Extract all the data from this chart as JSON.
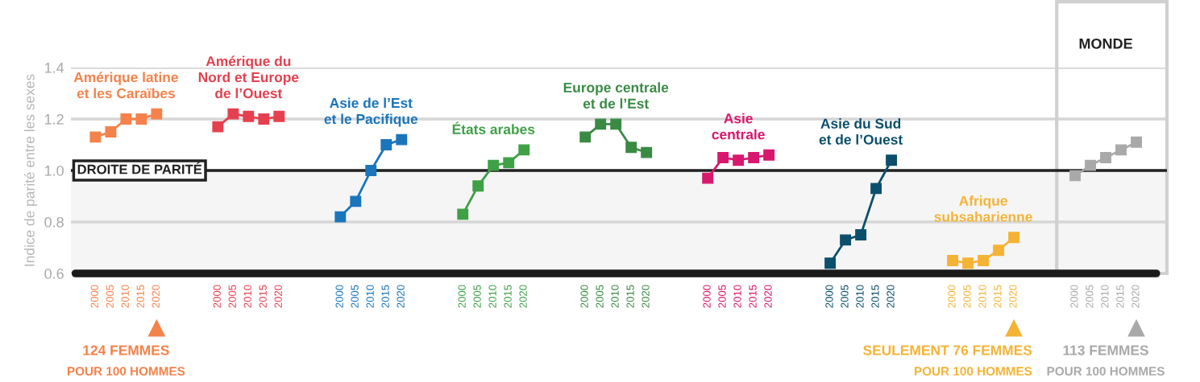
{
  "chart_data": {
    "type": "line",
    "title": "MONDE",
    "ylabel": "Indice de parité entre les sexes",
    "categories": [
      "2000",
      "2005",
      "2010",
      "2015",
      "2020",
      null,
      null,
      null,
      "2000",
      "2005",
      "2010",
      "2015",
      "2020",
      null,
      null,
      null,
      "2000",
      "2005",
      "2010",
      "2015",
      "2020",
      null,
      null,
      null,
      "2000",
      "2005",
      "2010",
      "2015",
      "2020",
      null,
      null,
      null,
      "2000",
      "2005",
      "2010",
      "2015",
      "2020",
      null,
      null,
      null,
      "2000",
      "2005",
      "2010",
      "2015",
      "2020",
      null,
      null,
      null,
      "2000",
      "2005",
      "2010",
      "2015",
      "2020",
      null,
      null,
      null,
      "2000",
      "2005",
      "2010",
      "2015",
      "2020",
      null,
      null,
      null,
      "2000",
      "2005",
      "2010",
      "2015",
      "2020"
    ],
    "series": [
      {
        "name": "Amérique latine\net les Caraïbes",
        "color": "#f4824a",
        "values": [
          1.13,
          1.15,
          1.2,
          1.2,
          1.22,
          null,
          null,
          null,
          null,
          null,
          null,
          null,
          null,
          null,
          null,
          null,
          null,
          null,
          null,
          null,
          null,
          null,
          null,
          null,
          null,
          null,
          null,
          null,
          null,
          null,
          null,
          null,
          null,
          null,
          null,
          null,
          null,
          null,
          null,
          null,
          null,
          null,
          null,
          null,
          null,
          null,
          null,
          null,
          null,
          null,
          null,
          null,
          null,
          null,
          null,
          null,
          null,
          null,
          null,
          null,
          null,
          null,
          null,
          null,
          null,
          null,
          null,
          null,
          null
        ]
      },
      {
        "name": "Amérique du\nNord et Europe\nde l’Ouest",
        "color": "#e5404f",
        "values": [
          null,
          null,
          null,
          null,
          null,
          null,
          null,
          null,
          1.17,
          1.22,
          1.21,
          1.2,
          1.21,
          null,
          null,
          null,
          null,
          null,
          null,
          null,
          null,
          null,
          null,
          null,
          null,
          null,
          null,
          null,
          null,
          null,
          null,
          null,
          null,
          null,
          null,
          null,
          null,
          null,
          null,
          null,
          null,
          null,
          null,
          null,
          null,
          null,
          null,
          null,
          null,
          null,
          null,
          null,
          null,
          null,
          null,
          null,
          null,
          null,
          null,
          null,
          null,
          null,
          null,
          null,
          null,
          null,
          null,
          null,
          null
        ]
      },
      {
        "name": "Asie de l’Est\net le Pacifique",
        "color": "#1a75bb",
        "values": [
          null,
          null,
          null,
          null,
          null,
          null,
          null,
          null,
          null,
          null,
          null,
          null,
          null,
          null,
          null,
          null,
          0.82,
          0.88,
          1.0,
          1.1,
          1.12,
          null,
          null,
          null,
          null,
          null,
          null,
          null,
          null,
          null,
          null,
          null,
          null,
          null,
          null,
          null,
          null,
          null,
          null,
          null,
          null,
          null,
          null,
          null,
          null,
          null,
          null,
          null,
          null,
          null,
          null,
          null,
          null,
          null,
          null,
          null,
          null,
          null,
          null,
          null,
          null,
          null,
          null,
          null,
          null,
          null,
          null,
          null,
          null
        ]
      },
      {
        "name": "États arabes",
        "color": "#3fa046",
        "values": [
          null,
          null,
          null,
          null,
          null,
          null,
          null,
          null,
          null,
          null,
          null,
          null,
          null,
          null,
          null,
          null,
          null,
          null,
          null,
          null,
          null,
          null,
          null,
          null,
          0.83,
          0.94,
          1.02,
          1.03,
          1.08,
          null,
          null,
          null,
          null,
          null,
          null,
          null,
          null,
          null,
          null,
          null,
          null,
          null,
          null,
          null,
          null,
          null,
          null,
          null,
          null,
          null,
          null,
          null,
          null,
          null,
          null,
          null,
          null,
          null,
          null,
          null,
          null,
          null,
          null,
          null,
          null,
          null,
          null,
          null,
          null
        ]
      },
      {
        "name": "Europe centrale\net de l’Est",
        "color": "#3a8a44",
        "values": [
          null,
          null,
          null,
          null,
          null,
          null,
          null,
          null,
          null,
          null,
          null,
          null,
          null,
          null,
          null,
          null,
          null,
          null,
          null,
          null,
          null,
          null,
          null,
          null,
          null,
          null,
          null,
          null,
          null,
          null,
          null,
          null,
          1.13,
          1.18,
          1.18,
          1.09,
          1.07,
          null,
          null,
          null,
          null,
          null,
          null,
          null,
          null,
          null,
          null,
          null,
          null,
          null,
          null,
          null,
          null,
          null,
          null,
          null,
          null,
          null,
          null,
          null,
          null,
          null,
          null,
          null,
          null,
          null,
          null,
          null,
          null
        ]
      },
      {
        "name": "Asie\ncentrale",
        "color": "#d8186e",
        "values": [
          null,
          null,
          null,
          null,
          null,
          null,
          null,
          null,
          null,
          null,
          null,
          null,
          null,
          null,
          null,
          null,
          null,
          null,
          null,
          null,
          null,
          null,
          null,
          null,
          null,
          null,
          null,
          null,
          null,
          null,
          null,
          null,
          null,
          null,
          null,
          null,
          null,
          null,
          null,
          null,
          0.97,
          1.05,
          1.04,
          1.05,
          1.06,
          null,
          null,
          null,
          null,
          null,
          null,
          null,
          null,
          null,
          null,
          null,
          null,
          null,
          null,
          null,
          null,
          null,
          null,
          null,
          null,
          null,
          null,
          null,
          null
        ]
      },
      {
        "name": "Asie du Sud\net de l’Ouest",
        "color": "#0b4f6c",
        "values": [
          null,
          null,
          null,
          null,
          null,
          null,
          null,
          null,
          null,
          null,
          null,
          null,
          null,
          null,
          null,
          null,
          null,
          null,
          null,
          null,
          null,
          null,
          null,
          null,
          null,
          null,
          null,
          null,
          null,
          null,
          null,
          null,
          null,
          null,
          null,
          null,
          null,
          null,
          null,
          null,
          null,
          null,
          null,
          null,
          null,
          null,
          null,
          null,
          0.64,
          0.73,
          0.75,
          0.93,
          1.04,
          null,
          null,
          null,
          null,
          null,
          null,
          null,
          null,
          null,
          null,
          null,
          null,
          null,
          null,
          null,
          null
        ]
      },
      {
        "name": "Afrique\nsubsaharienne",
        "color": "#f5b335",
        "values": [
          null,
          null,
          null,
          null,
          null,
          null,
          null,
          null,
          null,
          null,
          null,
          null,
          null,
          null,
          null,
          null,
          null,
          null,
          null,
          null,
          null,
          null,
          null,
          null,
          null,
          null,
          null,
          null,
          null,
          null,
          null,
          null,
          null,
          null,
          null,
          null,
          null,
          null,
          null,
          null,
          null,
          null,
          null,
          null,
          null,
          null,
          null,
          null,
          null,
          null,
          null,
          null,
          null,
          null,
          null,
          null,
          0.65,
          0.64,
          0.65,
          0.69,
          0.74,
          null,
          null,
          null,
          null,
          null,
          null,
          null,
          null
        ]
      },
      {
        "color": "#a9a9a9",
        "values": [
          null,
          null,
          null,
          null,
          null,
          null,
          null,
          null,
          null,
          null,
          null,
          null,
          null,
          null,
          null,
          null,
          null,
          null,
          null,
          null,
          null,
          null,
          null,
          null,
          null,
          null,
          null,
          null,
          null,
          null,
          null,
          null,
          null,
          null,
          null,
          null,
          null,
          null,
          null,
          null,
          null,
          null,
          null,
          null,
          null,
          null,
          null,
          null,
          null,
          null,
          null,
          null,
          null,
          null,
          null,
          null,
          null,
          null,
          null,
          null,
          null,
          null,
          null,
          null,
          0.98,
          1.02,
          1.05,
          1.08,
          1.11
        ]
      }
    ],
    "ylim": [
      0.6,
      1.4
    ],
    "yticks": [
      0.6,
      0.8,
      {
        "value": 1.0,
        "label": "1.0"
      },
      1.2,
      1.4
    ],
    "grid": "y",
    "marker": "square",
    "line_style": "solid",
    "bands": [
      {
        "axis": "y",
        "from": 0.6,
        "to": 1.0,
        "color": "#f5f5f5"
      }
    ],
    "ref_lines": [
      {
        "axis": "y",
        "value": 1.0,
        "label": "DROITE DE PARITÉ",
        "color": "#222222"
      }
    ],
    "annotations": [
      "124 FEMMES",
      "POUR 100 HOMMES",
      "SEULEMENT 76 FEMMES",
      "POUR 100 HOMMES",
      "113 FEMMES",
      "POUR 100 HOMMES"
    ]
  }
}
